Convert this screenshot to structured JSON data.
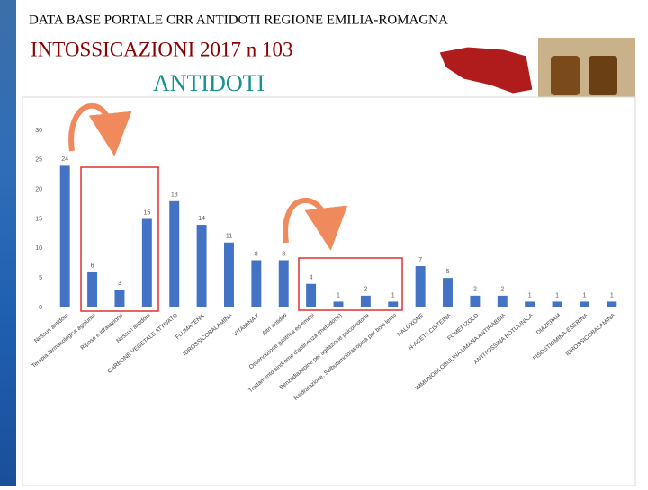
{
  "header": {
    "line1": "DATA BASE PORTALE CRR ANTIDOTI REGIONE EMILIA-ROMAGNA",
    "line2": "INTOSSICAZIONI 2017 n 103",
    "line3": "ANTIDOTI"
  },
  "chart_data": {
    "type": "bar",
    "color": "#4472c4",
    "categories": [
      "Nessun antidoto",
      "Terapia farmacologica aggiunta",
      "Riposo e idratazione",
      "Nessun antidoto",
      "CARBONE VEGETALE ATTIVATO",
      "FLUMAZENIL",
      "IDROSSICOBALAMINA",
      "VITAMINA K",
      "Altri antidoti",
      "Osservazione gastrica ed emesi",
      "Trattamento sindrome d'astinenza (metadone)",
      "Benzodiazepine per agitazione psicomotoria",
      "Reidratazione, Salbutamolo/atropina per bolo lento",
      "NALOXONE",
      "N-ACETILCISTEINA",
      "FOMEPIZOLO",
      "IMMUNOGLOBULINA UMANA ANTIRABBIA",
      "ANTITOSSINA BOTULINICA",
      "DIAZEPAM",
      "FISOSTIGMINA-ESERINA",
      "IDROSSICOBALAMINA"
    ],
    "values": [
      24,
      6,
      3,
      15,
      18,
      14,
      11,
      8,
      8,
      4,
      1,
      2,
      1,
      7,
      5,
      2,
      2,
      1,
      1,
      1,
      1
    ],
    "ylim": [
      0,
      30
    ],
    "yticks": [
      0,
      5,
      10,
      15,
      20,
      25,
      30
    ],
    "grid": false
  }
}
